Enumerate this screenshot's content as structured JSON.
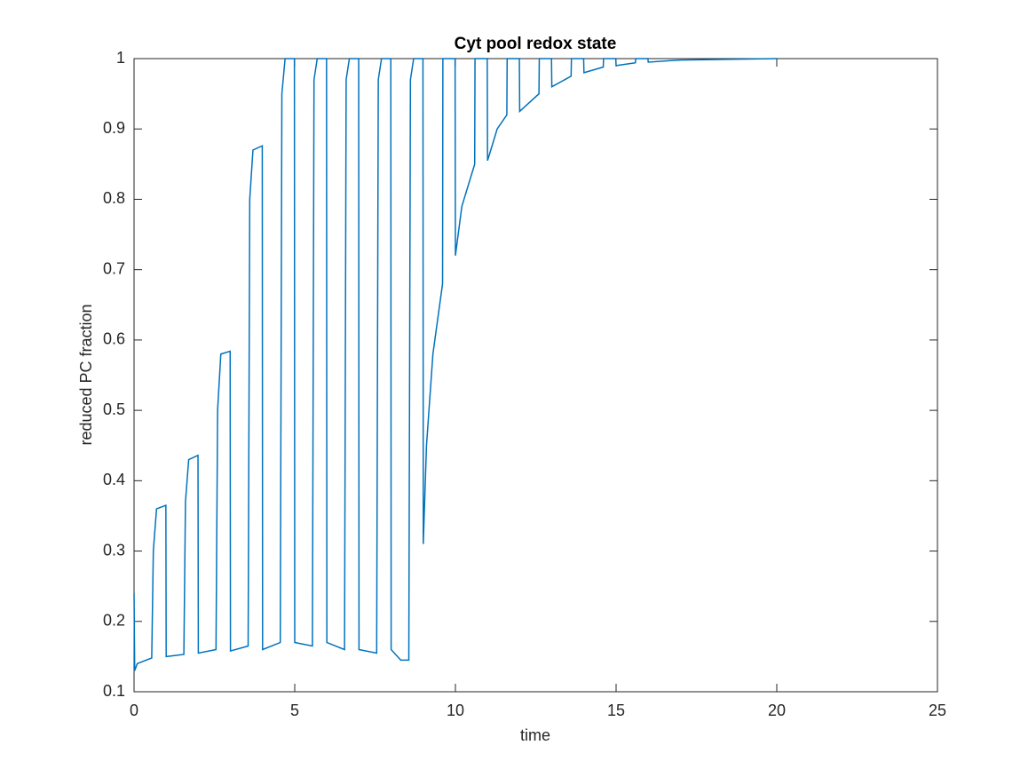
{
  "chart_data": {
    "type": "line",
    "title": "Cyt pool redox state",
    "x_label": "time",
    "y_label": "reduced PC fraction",
    "xlim": [
      0,
      25
    ],
    "xticks": [
      0,
      5,
      10,
      15,
      20,
      25
    ],
    "ylim": [
      0.1,
      1
    ],
    "yticks": [
      0.1,
      0.2,
      0.3,
      0.4,
      0.5,
      0.6,
      0.7,
      0.8,
      0.9,
      1
    ],
    "series": [
      {
        "color": "#0072bd",
        "x": [
          0,
          0.02,
          0.1,
          0.55,
          0.6,
          0.7,
          0.99,
          1.0,
          1.55,
          1.6,
          1.7,
          1.99,
          2.0,
          2.55,
          2.6,
          2.7,
          2.99,
          3.0,
          3.55,
          3.6,
          3.7,
          3.99,
          4.0,
          4.55,
          4.6,
          4.7,
          4.99,
          5.0,
          5.55,
          5.6,
          5.7,
          5.99,
          6.0,
          6.55,
          6.6,
          6.7,
          6.99,
          7.0,
          7.55,
          7.6,
          7.7,
          7.99,
          8.0,
          8.3,
          8.55,
          8.6,
          8.7,
          8.99,
          9.0,
          9.1,
          9.3,
          9.6,
          9.61,
          9.99,
          10.0,
          10.2,
          10.6,
          10.61,
          10.99,
          11.0,
          11.3,
          11.6,
          11.61,
          11.99,
          12.0,
          12.6,
          12.61,
          12.99,
          13.0,
          13.6,
          13.61,
          13.99,
          14.0,
          14.6,
          14.61,
          14.99,
          15.0,
          15.6,
          15.61,
          15.99,
          16.0,
          17.0,
          20.0
        ],
        "values": [
          0.24,
          0.13,
          0.14,
          0.148,
          0.3,
          0.36,
          0.365,
          0.15,
          0.153,
          0.37,
          0.43,
          0.436,
          0.155,
          0.16,
          0.5,
          0.58,
          0.584,
          0.158,
          0.165,
          0.8,
          0.87,
          0.876,
          0.16,
          0.17,
          0.95,
          1.0,
          1.0,
          0.17,
          0.165,
          0.97,
          1.0,
          1.0,
          0.17,
          0.16,
          0.97,
          1.0,
          1.0,
          0.16,
          0.155,
          0.97,
          1.0,
          1.0,
          0.16,
          0.145,
          0.145,
          0.97,
          1.0,
          1.0,
          0.31,
          0.45,
          0.58,
          0.68,
          1.0,
          1.0,
          0.72,
          0.79,
          0.85,
          1.0,
          1.0,
          0.855,
          0.9,
          0.92,
          1.0,
          1.0,
          0.925,
          0.95,
          1.0,
          1.0,
          0.96,
          0.975,
          1.0,
          1.0,
          0.98,
          0.988,
          1.0,
          1.0,
          0.99,
          0.994,
          1.0,
          1.0,
          0.995,
          0.998,
          1.0
        ]
      }
    ]
  }
}
